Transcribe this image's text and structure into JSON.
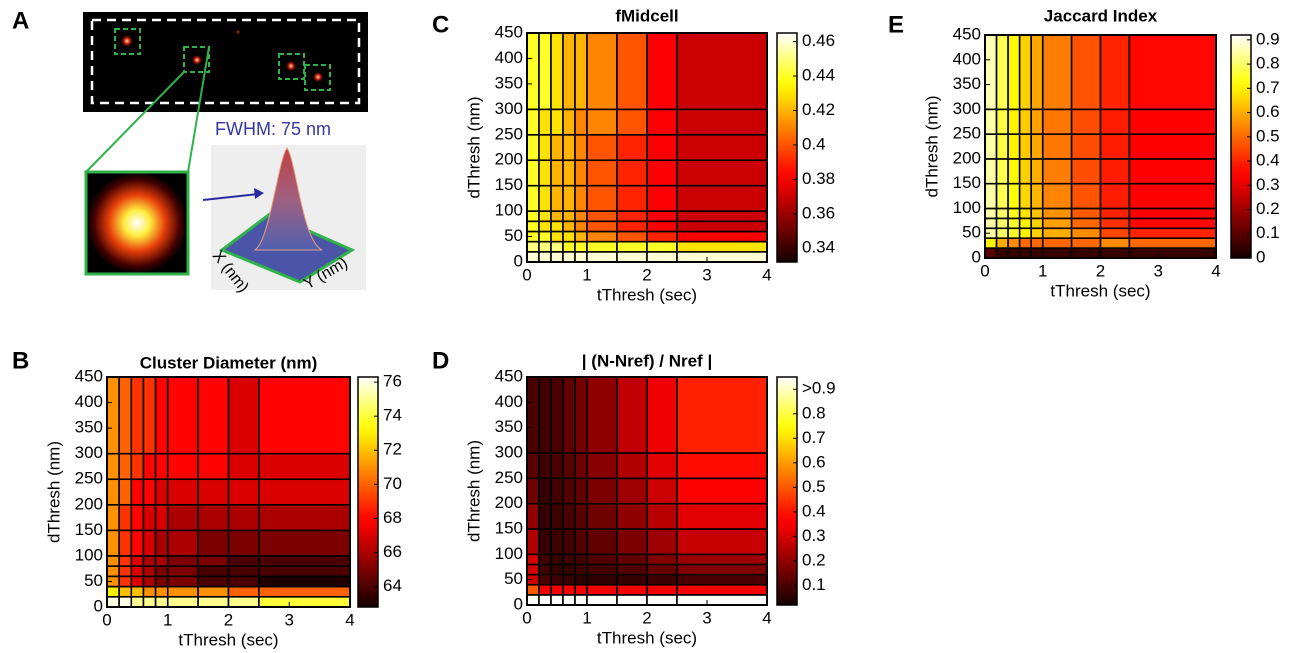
{
  "panel_a": {
    "label": "A",
    "annotation": "FWHM: 75 nm",
    "x_label": "X (nm)",
    "y_label": "Y (nm)"
  },
  "chart_data": [
    {
      "type": "heatmap",
      "panel": "B",
      "title": "Cluster Diameter (nm)",
      "x_label": "tThresh (sec)",
      "y_label": "dThresh (nm)",
      "x_edges": [
        0,
        0.2,
        0.4,
        0.6,
        0.8,
        1.0,
        1.5,
        2.0,
        2.5,
        4
      ],
      "y_edges": [
        0,
        20,
        40,
        60,
        80,
        100,
        150,
        200,
        250,
        300,
        450
      ],
      "z": [
        [
          76,
          76,
          75,
          75,
          75,
          75,
          75,
          75,
          74
        ],
        [
          73,
          72,
          72,
          71,
          71,
          71,
          71,
          70,
          70
        ],
        [
          71,
          69,
          67,
          66,
          65,
          65,
          64,
          64,
          63
        ],
        [
          71,
          69,
          67,
          66,
          65,
          65,
          64,
          64,
          64
        ],
        [
          71,
          69,
          67,
          66,
          66,
          65,
          65,
          64,
          64
        ],
        [
          71,
          69,
          68,
          67,
          66,
          66,
          65,
          65,
          65
        ],
        [
          71,
          69,
          68,
          67,
          67,
          66,
          66,
          66,
          66
        ],
        [
          71,
          70,
          68,
          68,
          67,
          67,
          67,
          67,
          67
        ],
        [
          71,
          70,
          69,
          68,
          68,
          68,
          68,
          67,
          67
        ],
        [
          71,
          70,
          69,
          69,
          68,
          68,
          68,
          67,
          68
        ]
      ],
      "xlim": [
        0,
        4
      ],
      "ylim": [
        0,
        450
      ],
      "xticks": [
        0,
        1,
        2,
        3,
        4
      ],
      "yticks": [
        0,
        50,
        100,
        150,
        200,
        250,
        300,
        350,
        400,
        450
      ],
      "zlim": [
        62.8,
        76.3
      ],
      "zticks": [
        64,
        66,
        68,
        70,
        72,
        74,
        76
      ],
      "colormap": "hot"
    },
    {
      "type": "heatmap",
      "panel": "C",
      "title": "fMidcell",
      "x_label": "tThresh (sec)",
      "y_label": "dThresh (nm)",
      "x_edges": [
        0,
        0.2,
        0.4,
        0.6,
        0.8,
        1.0,
        1.5,
        2.0,
        2.5,
        4
      ],
      "y_edges": [
        0,
        20,
        40,
        60,
        80,
        100,
        150,
        200,
        250,
        300,
        450
      ],
      "z": [
        [
          0.46,
          0.46,
          0.46,
          0.46,
          0.46,
          0.46,
          0.46,
          0.46,
          0.46
        ],
        [
          0.45,
          0.45,
          0.45,
          0.44,
          0.44,
          0.44,
          0.44,
          0.44,
          0.43
        ],
        [
          0.44,
          0.44,
          0.43,
          0.43,
          0.42,
          0.41,
          0.4,
          0.39,
          0.38
        ],
        [
          0.44,
          0.43,
          0.43,
          0.42,
          0.41,
          0.4,
          0.39,
          0.38,
          0.37
        ],
        [
          0.44,
          0.43,
          0.42,
          0.42,
          0.41,
          0.4,
          0.39,
          0.38,
          0.37
        ],
        [
          0.44,
          0.43,
          0.42,
          0.42,
          0.41,
          0.4,
          0.39,
          0.38,
          0.37
        ],
        [
          0.44,
          0.43,
          0.42,
          0.42,
          0.41,
          0.4,
          0.39,
          0.38,
          0.37
        ],
        [
          0.44,
          0.43,
          0.42,
          0.42,
          0.41,
          0.4,
          0.39,
          0.38,
          0.37
        ],
        [
          0.44,
          0.43,
          0.43,
          0.42,
          0.41,
          0.41,
          0.4,
          0.38,
          0.37
        ],
        [
          0.44,
          0.44,
          0.43,
          0.42,
          0.42,
          0.41,
          0.4,
          0.38,
          0.37
        ]
      ],
      "xlim": [
        0,
        4
      ],
      "ylim": [
        0,
        450
      ],
      "xticks": [
        0,
        1,
        2,
        3,
        4
      ],
      "yticks": [
        0,
        50,
        100,
        150,
        200,
        250,
        300,
        350,
        400,
        450
      ],
      "zlim": [
        0.332,
        0.465
      ],
      "zticks": [
        0.34,
        0.36,
        0.38,
        0.4,
        0.42,
        0.44,
        0.46
      ],
      "colormap": "hot"
    },
    {
      "type": "heatmap",
      "panel": "D",
      "title": "| (N-Nref) / Nref |",
      "x_label": "tThresh (sec)",
      "y_label": "dThresh (nm)",
      "x_edges": [
        0,
        0.2,
        0.4,
        0.6,
        0.8,
        1.0,
        1.5,
        2.0,
        2.5,
        4
      ],
      "y_edges": [
        0,
        20,
        40,
        60,
        80,
        100,
        150,
        200,
        250,
        300,
        450
      ],
      "z": [
        [
          0.95,
          0.95,
          0.95,
          0.95,
          0.95,
          0.95,
          0.95,
          0.95,
          0.95
        ],
        [
          0.5,
          0.35,
          0.35,
          0.35,
          0.35,
          0.35,
          0.35,
          0.35,
          0.35
        ],
        [
          0.3,
          0.1,
          0.08,
          0.07,
          0.06,
          0.06,
          0.07,
          0.08,
          0.1
        ],
        [
          0.3,
          0.08,
          0.07,
          0.07,
          0.08,
          0.09,
          0.11,
          0.14,
          0.18
        ],
        [
          0.3,
          0.08,
          0.07,
          0.08,
          0.09,
          0.11,
          0.14,
          0.18,
          0.22
        ],
        [
          0.25,
          0.07,
          0.08,
          0.09,
          0.11,
          0.13,
          0.17,
          0.22,
          0.28
        ],
        [
          0.2,
          0.07,
          0.08,
          0.1,
          0.12,
          0.15,
          0.2,
          0.26,
          0.32
        ],
        [
          0.15,
          0.07,
          0.09,
          0.11,
          0.13,
          0.17,
          0.22,
          0.29,
          0.36
        ],
        [
          0.12,
          0.08,
          0.1,
          0.12,
          0.15,
          0.19,
          0.25,
          0.32,
          0.39
        ],
        [
          0.1,
          0.08,
          0.1,
          0.13,
          0.16,
          0.2,
          0.27,
          0.34,
          0.42
        ]
      ],
      "xlim": [
        0,
        4
      ],
      "ylim": [
        0,
        450
      ],
      "xticks": [
        0,
        1,
        2,
        3,
        4
      ],
      "yticks": [
        0,
        50,
        100,
        150,
        200,
        250,
        300,
        350,
        400,
        450
      ],
      "zlim": [
        0.02,
        0.95
      ],
      "zticks": [
        0.1,
        0.2,
        0.3,
        0.4,
        0.5,
        0.6,
        0.7,
        0.8,
        {
          "value": 0.9,
          "label": ">0.9"
        }
      ],
      "colormap": "hot"
    },
    {
      "type": "heatmap",
      "panel": "E",
      "title": "Jaccard Index",
      "x_label": "tThresh (sec)",
      "y_label": "dThresh (nm)",
      "x_edges": [
        0,
        0.2,
        0.4,
        0.6,
        0.8,
        1.0,
        1.5,
        2.0,
        2.5,
        4
      ],
      "y_edges": [
        0,
        20,
        40,
        60,
        80,
        100,
        150,
        200,
        250,
        300,
        450
      ],
      "z": [
        [
          0.1,
          0.05,
          0.05,
          0.05,
          0.05,
          0.05,
          0.05,
          0.05,
          0.05
        ],
        [
          0.7,
          0.6,
          0.55,
          0.5,
          0.5,
          0.5,
          0.5,
          0.55,
          0.5
        ],
        [
          0.85,
          0.8,
          0.75,
          0.7,
          0.65,
          0.6,
          0.55,
          0.45,
          0.4
        ],
        [
          0.85,
          0.8,
          0.75,
          0.7,
          0.65,
          0.58,
          0.5,
          0.42,
          0.36
        ],
        [
          0.85,
          0.8,
          0.74,
          0.68,
          0.63,
          0.56,
          0.48,
          0.4,
          0.35
        ],
        [
          0.85,
          0.78,
          0.72,
          0.66,
          0.61,
          0.54,
          0.47,
          0.39,
          0.34
        ],
        [
          0.85,
          0.78,
          0.71,
          0.65,
          0.6,
          0.53,
          0.46,
          0.39,
          0.34
        ],
        [
          0.85,
          0.77,
          0.7,
          0.64,
          0.59,
          0.52,
          0.46,
          0.39,
          0.34
        ],
        [
          0.85,
          0.77,
          0.7,
          0.64,
          0.58,
          0.52,
          0.46,
          0.39,
          0.35
        ],
        [
          0.86,
          0.78,
          0.71,
          0.65,
          0.59,
          0.53,
          0.47,
          0.4,
          0.36
        ]
      ],
      "xlim": [
        0,
        4
      ],
      "ylim": [
        0,
        450
      ],
      "xticks": [
        0,
        1,
        2,
        3,
        4
      ],
      "yticks": [
        0,
        50,
        100,
        150,
        200,
        250,
        300,
        350,
        400,
        450
      ],
      "zlim": [
        0,
        0.92
      ],
      "zticks": [
        0,
        0.1,
        0.2,
        0.3,
        0.4,
        0.5,
        0.6,
        0.7,
        0.8,
        0.9
      ],
      "colormap": "hot"
    }
  ]
}
